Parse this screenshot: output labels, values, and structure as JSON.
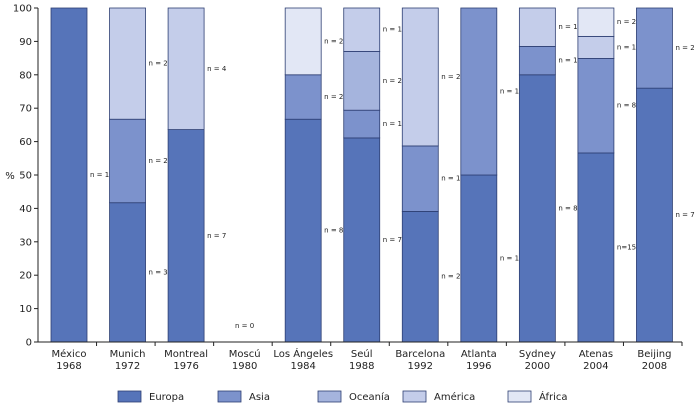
{
  "chart_data": {
    "type": "bar",
    "stacked": true,
    "ylabel": "%",
    "ylim": [
      0,
      100
    ],
    "yticks": [
      0,
      10,
      20,
      30,
      40,
      50,
      60,
      70,
      80,
      90,
      100
    ],
    "grid": false,
    "legend_position": "bottom",
    "categories": [
      [
        "México",
        "1968"
      ],
      [
        "Munich",
        "1972"
      ],
      [
        "Montreal",
        "1976"
      ],
      [
        "Moscú",
        "1980"
      ],
      [
        "Los Ángeles",
        "1984"
      ],
      [
        "Seúl",
        "1988"
      ],
      [
        "Barcelona",
        "1992"
      ],
      [
        "Atlanta",
        "1996"
      ],
      [
        "Sydney",
        "2000"
      ],
      [
        "Atenas",
        "2004"
      ],
      [
        "Beijing",
        "2008"
      ]
    ],
    "series": [
      {
        "name": "Europa",
        "color": "#5674b9",
        "values": [
          100,
          41.7,
          63.6,
          0,
          66.7,
          61.1,
          39.1,
          50,
          80,
          56.6,
          76
        ],
        "labels": [
          "n = 1",
          "n = 3",
          "n = 7",
          "",
          "n = 8",
          "n = 7",
          "n = 2",
          "n = 1",
          "n = 8",
          "n=15",
          "n = 7"
        ]
      },
      {
        "name": "Asia",
        "color": "#7c92cc",
        "values": [
          0,
          25,
          0,
          0,
          13.3,
          8.3,
          19.6,
          50,
          8.5,
          28.3,
          24
        ],
        "labels": [
          "",
          "n = 2",
          "",
          "",
          "n = 2",
          "n = 1",
          "n = 1",
          "n = 1",
          "n = 1",
          "n = 8",
          "n = 2"
        ]
      },
      {
        "name": "Oceanía",
        "color": "#a5b4dd",
        "values": [
          0,
          0,
          0,
          0,
          0,
          17.6,
          0,
          0,
          0,
          0,
          0
        ],
        "labels": [
          "",
          "",
          "",
          "",
          "",
          "n = 2",
          "",
          "",
          "",
          "",
          ""
        ]
      },
      {
        "name": "América",
        "color": "#c4cdea",
        "values": [
          0,
          33.3,
          36.4,
          0,
          0,
          13,
          41.3,
          0,
          11.5,
          6.6,
          0
        ],
        "labels": [
          "",
          "n = 2",
          "n = 4",
          "",
          "",
          "n = 1",
          "n = 2",
          "",
          "n = 1",
          "n = 1",
          ""
        ]
      },
      {
        "name": "África",
        "color": "#e2e7f5",
        "values": [
          0,
          0,
          0,
          0,
          20,
          0,
          0,
          0,
          0,
          8.5,
          0
        ],
        "labels": [
          "",
          "",
          "",
          "",
          "n = 2",
          "",
          "",
          "",
          "",
          "n = 2",
          ""
        ]
      }
    ],
    "annotations": [
      {
        "category_index": 3,
        "text": "n = 0"
      }
    ]
  }
}
